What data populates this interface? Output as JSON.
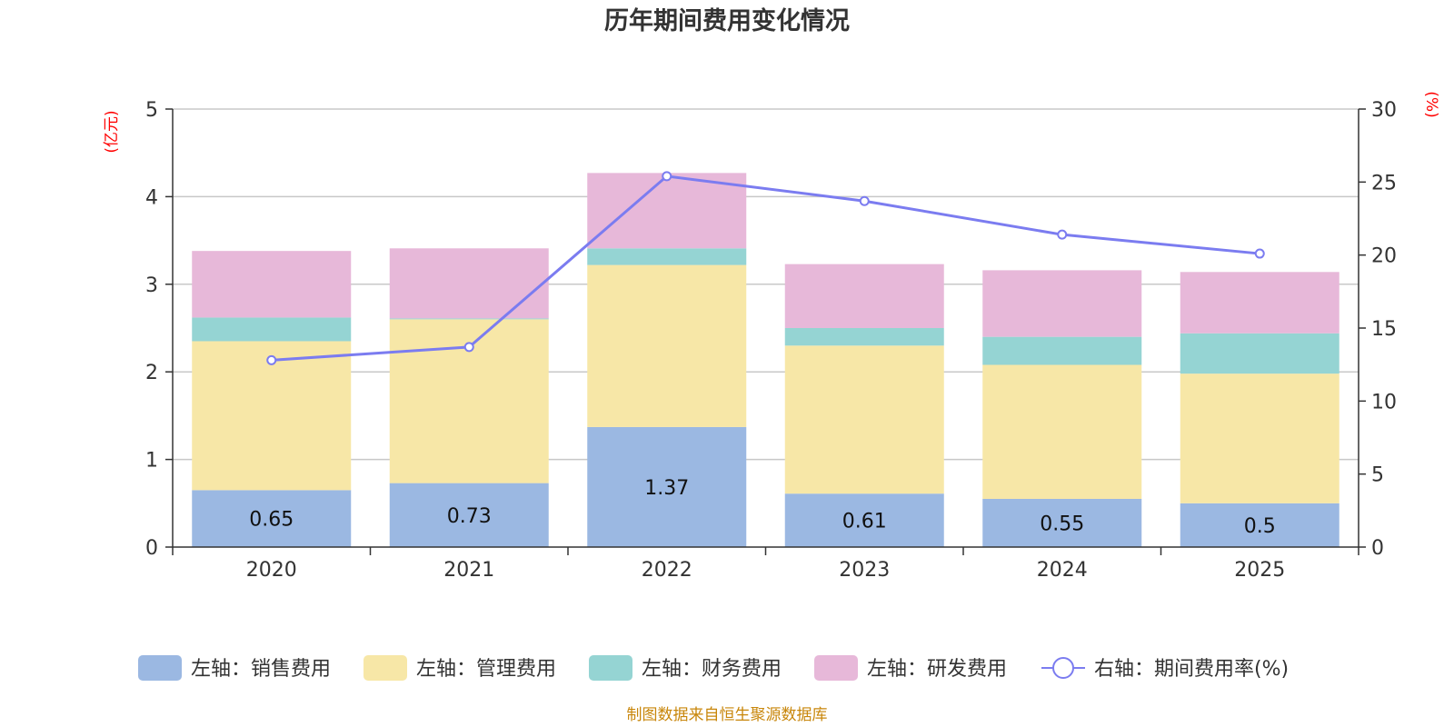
{
  "chart_data": {
    "type": "bar",
    "stacked": true,
    "title": "历年期间费用变化情况",
    "categories": [
      "2020",
      "2021",
      "2022",
      "2023",
      "2024",
      "2025"
    ],
    "left_axis": {
      "unit": "(亿元)",
      "ylim": [
        0,
        5
      ],
      "ticks": [
        "0",
        "1",
        "2",
        "3",
        "4",
        "5"
      ]
    },
    "right_axis": {
      "unit": "(%)",
      "ylim": [
        0,
        30
      ],
      "ticks": [
        "0",
        "5",
        "10",
        "15",
        "20",
        "25",
        "30"
      ]
    },
    "series": [
      {
        "name": "左轴：销售费用",
        "axis": "left",
        "type": "bar",
        "color": "#9bb8e2",
        "values": [
          0.65,
          0.73,
          1.37,
          0.61,
          0.55,
          0.5
        ],
        "labels": [
          "0.65",
          "0.73",
          "1.37",
          "0.61",
          "0.55",
          "0.5"
        ]
      },
      {
        "name": "左轴：管理费用",
        "axis": "left",
        "type": "bar",
        "color": "#f7e7a7",
        "values": [
          1.7,
          1.87,
          1.85,
          1.69,
          1.53,
          1.48
        ]
      },
      {
        "name": "左轴：财务费用",
        "axis": "left",
        "type": "bar",
        "color": "#95d4d3",
        "values": [
          0.27,
          0.01,
          0.19,
          0.2,
          0.32,
          0.46
        ]
      },
      {
        "name": "左轴：研发费用",
        "axis": "left",
        "type": "bar",
        "color": "#e7b8d9",
        "values": [
          0.76,
          0.8,
          0.86,
          0.73,
          0.76,
          0.7
        ]
      },
      {
        "name": "右轴：期间费用率(%)",
        "axis": "right",
        "type": "line",
        "color": "#7b7cf0",
        "values": [
          12.8,
          13.7,
          25.4,
          23.7,
          21.4,
          20.1
        ]
      }
    ],
    "grid": true,
    "legend": "bottom"
  },
  "source": "制图数据来自恒生聚源数据库"
}
